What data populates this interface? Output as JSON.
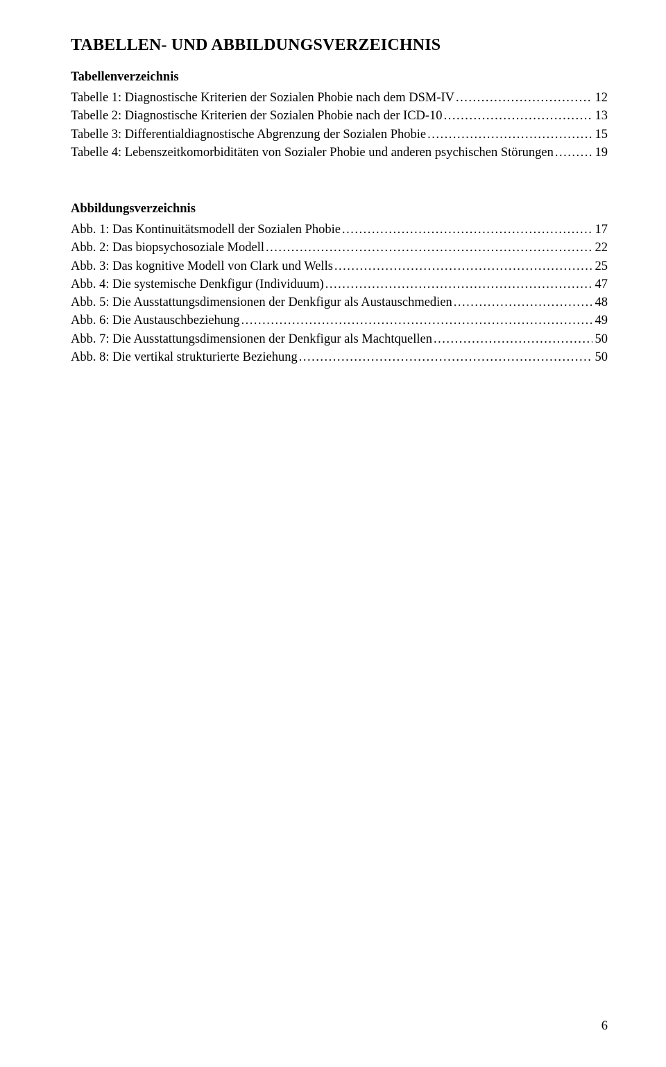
{
  "heading": "TABELLEN- UND ABBILDUNGSVERZEICHNIS",
  "tabellen": {
    "title": "Tabellenverzeichnis",
    "items": [
      {
        "label": "Tabelle 1: Diagnostische Kriterien der Sozialen Phobie nach dem DSM-IV",
        "page": "12"
      },
      {
        "label": "Tabelle 2: Diagnostische Kriterien der Sozialen Phobie nach der ICD-10",
        "page": "13"
      },
      {
        "label": "Tabelle 3: Differentialdiagnostische Abgrenzung der Sozialen Phobie",
        "page": "15"
      },
      {
        "label": "Tabelle 4: Lebenszeitkomorbiditäten von Sozialer Phobie und anderen psychischen Störungen",
        "page": "19"
      }
    ]
  },
  "abbildungen": {
    "title": "Abbildungsverzeichnis",
    "items": [
      {
        "label": "Abb. 1: Das Kontinuitätsmodell der Sozialen Phobie",
        "page": "17"
      },
      {
        "label": "Abb. 2: Das biopsychosoziale Modell",
        "page": "22"
      },
      {
        "label": "Abb. 3: Das kognitive Modell von Clark und Wells",
        "page": "25"
      },
      {
        "label": "Abb. 4: Die systemische Denkfigur (Individuum)",
        "page": "47"
      },
      {
        "label": "Abb. 5: Die Ausstattungsdimensionen der Denkfigur als Austauschmedien",
        "page": "48"
      },
      {
        "label": "Abb. 6: Die Austauschbeziehung",
        "page": "49"
      },
      {
        "label": "Abb. 7: Die Ausstattungsdimensionen der Denkfigur als Machtquellen",
        "page": "50"
      },
      {
        "label": "Abb. 8: Die vertikal strukturierte Beziehung",
        "page": "50"
      }
    ]
  },
  "page_number": "6"
}
